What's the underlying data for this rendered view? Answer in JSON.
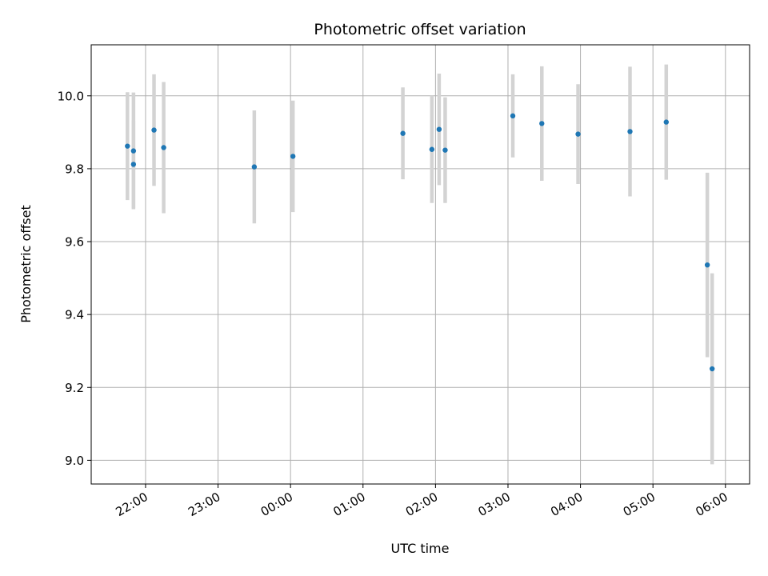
{
  "chart_data": {
    "type": "scatter",
    "title": "Photometric offset variation",
    "xlabel": "UTC time",
    "ylabel": "Photometric offset",
    "grid": true,
    "xlim": [
      "21:15",
      "06:20"
    ],
    "ylim": [
      8.935,
      10.14
    ],
    "x_ticks": [
      "22:00",
      "23:00",
      "00:00",
      "01:00",
      "02:00",
      "03:00",
      "04:00",
      "05:00",
      "06:00"
    ],
    "y_ticks": [
      "9.0",
      "9.2",
      "9.4",
      "9.6",
      "9.8",
      "10.0"
    ],
    "points": [
      {
        "x": "21:45",
        "y": 9.862,
        "err": 0.148
      },
      {
        "x": "21:50",
        "y": 9.849,
        "err": 0.16
      },
      {
        "x": "21:50",
        "y": 9.812,
        "err": 0.12
      },
      {
        "x": "22:07",
        "y": 9.906,
        "err": 0.153
      },
      {
        "x": "22:15",
        "y": 9.858,
        "err": 0.18
      },
      {
        "x": "23:30",
        "y": 9.805,
        "err": 0.155
      },
      {
        "x": "00:02",
        "y": 9.834,
        "err": 0.153
      },
      {
        "x": "01:33",
        "y": 9.897,
        "err": 0.126
      },
      {
        "x": "01:57",
        "y": 9.853,
        "err": 0.147
      },
      {
        "x": "02:03",
        "y": 9.908,
        "err": 0.153
      },
      {
        "x": "02:08",
        "y": 9.851,
        "err": 0.145
      },
      {
        "x": "03:04",
        "y": 9.945,
        "err": 0.114
      },
      {
        "x": "03:28",
        "y": 9.924,
        "err": 0.157
      },
      {
        "x": "03:58",
        "y": 9.895,
        "err": 0.137
      },
      {
        "x": "04:41",
        "y": 9.902,
        "err": 0.178
      },
      {
        "x": "05:11",
        "y": 9.928,
        "err": 0.158
      },
      {
        "x": "05:45",
        "y": 9.536,
        "err": 0.253
      },
      {
        "x": "05:49",
        "y": 9.251,
        "err": 0.262
      }
    ],
    "colors": {
      "marker": "#1f77b4",
      "errorbar": "#d3d3d3",
      "grid": "#b0b0b0",
      "axes": "#000000"
    }
  }
}
